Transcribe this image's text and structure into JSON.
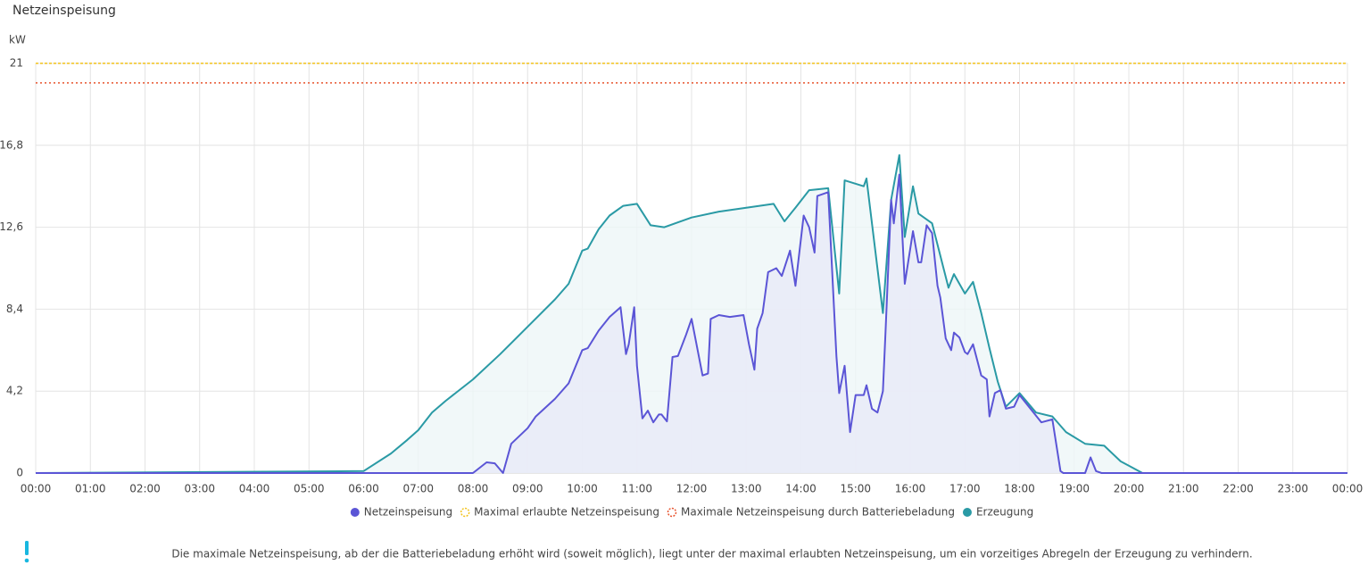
{
  "chart_data": {
    "type": "line",
    "title": "Netzeinspeisung",
    "y_label": "kW",
    "xlim": [
      0,
      24
    ],
    "xticks": [
      {
        "value": 0,
        "label": "00:00"
      },
      {
        "value": 1,
        "label": "01:00"
      },
      {
        "value": 2,
        "label": "02:00"
      },
      {
        "value": 3,
        "label": "03:00"
      },
      {
        "value": 4,
        "label": "04:00"
      },
      {
        "value": 5,
        "label": "05:00"
      },
      {
        "value": 6,
        "label": "06:00"
      },
      {
        "value": 7,
        "label": "07:00"
      },
      {
        "value": 8,
        "label": "08:00"
      },
      {
        "value": 9,
        "label": "09:00"
      },
      {
        "value": 10,
        "label": "10:00"
      },
      {
        "value": 11,
        "label": "11:00"
      },
      {
        "value": 12,
        "label": "12:00"
      },
      {
        "value": 13,
        "label": "13:00"
      },
      {
        "value": 14,
        "label": "14:00"
      },
      {
        "value": 15,
        "label": "15:00"
      },
      {
        "value": 16,
        "label": "16:00"
      },
      {
        "value": 17,
        "label": "17:00"
      },
      {
        "value": 18,
        "label": "18:00"
      },
      {
        "value": 19,
        "label": "19:00"
      },
      {
        "value": 20,
        "label": "20:00"
      },
      {
        "value": 21,
        "label": "21:00"
      },
      {
        "value": 22,
        "label": "22:00"
      },
      {
        "value": 23,
        "label": "23:00"
      },
      {
        "value": 24,
        "label": "00:00"
      }
    ],
    "ylim": [
      0,
      21
    ],
    "yticks": [
      0,
      {
        "value": 4.2,
        "label": "4,2"
      },
      {
        "value": 8.4,
        "label": "8,4"
      },
      {
        "value": 12.6,
        "label": "12,6"
      },
      {
        "value": 16.8,
        "label": "16,8"
      },
      21
    ],
    "grid": true,
    "series": [
      {
        "name": "Netzeinspeisung",
        "color": "#5b55d6",
        "fill": "#e8eaf8",
        "x": [
          0,
          8.0,
          8.25,
          8.4,
          8.55,
          8.7,
          9.0,
          9.15,
          9.5,
          9.75,
          10.0,
          10.1,
          10.3,
          10.5,
          10.7,
          10.8,
          10.85,
          10.95,
          11.0,
          11.1,
          11.2,
          11.3,
          11.4,
          11.45,
          11.55,
          11.65,
          11.75,
          11.9,
          12.0,
          12.2,
          12.3,
          12.35,
          12.5,
          12.7,
          12.95,
          13.05,
          13.15,
          13.2,
          13.3,
          13.4,
          13.55,
          13.65,
          13.8,
          13.9,
          14.05,
          14.15,
          14.25,
          14.3,
          14.5,
          14.65,
          14.7,
          14.8,
          14.9,
          15.0,
          15.15,
          15.2,
          15.3,
          15.4,
          15.5,
          15.55,
          15.65,
          15.7,
          15.8,
          15.9,
          16.05,
          16.15,
          16.2,
          16.3,
          16.4,
          16.5,
          16.55,
          16.65,
          16.75,
          16.8,
          16.9,
          17.0,
          17.05,
          17.15,
          17.3,
          17.4,
          17.45,
          17.55,
          17.65,
          17.75,
          17.9,
          18.0,
          18.4,
          18.6,
          18.75,
          18.8,
          19.2,
          19.3,
          19.4,
          19.5,
          24
        ],
        "values": [
          0,
          0,
          0.55,
          0.5,
          0,
          1.5,
          2.3,
          2.9,
          3.8,
          4.6,
          6.3,
          6.4,
          7.3,
          8.0,
          8.5,
          6.1,
          6.6,
          8.5,
          5.5,
          2.8,
          3.2,
          2.6,
          3.0,
          3.0,
          2.65,
          5.95,
          6.0,
          7.1,
          7.9,
          5.0,
          5.1,
          7.9,
          8.1,
          8.0,
          8.1,
          6.6,
          5.3,
          7.4,
          8.2,
          10.3,
          10.5,
          10.1,
          11.4,
          9.6,
          13.2,
          12.6,
          11.3,
          14.2,
          14.4,
          6.0,
          4.1,
          5.5,
          2.1,
          4.0,
          4.0,
          4.5,
          3.3,
          3.1,
          4.2,
          7.3,
          14.0,
          12.8,
          15.3,
          9.7,
          12.4,
          10.8,
          10.8,
          12.7,
          12.3,
          9.6,
          9.0,
          6.9,
          6.3,
          7.2,
          6.95,
          6.2,
          6.1,
          6.6,
          5.0,
          4.8,
          2.9,
          4.1,
          4.25,
          3.3,
          3.4,
          4.0,
          2.6,
          2.75,
          0.1,
          0,
          0,
          0.8,
          0.1,
          0,
          0
        ]
      },
      {
        "name": "Maximal erlaubte Netzeinspeisung",
        "color": "#f2c21b",
        "value": 21
      },
      {
        "name": "Maximale Netzeinspeisung durch Batteriebeladung",
        "color": "#e8542f",
        "value": 20
      },
      {
        "name": "Erzeugung",
        "color": "#2a9aa5",
        "fill": "#eef6f8",
        "x": [
          0,
          6.0,
          6.5,
          6.8,
          7.0,
          7.25,
          7.5,
          8.0,
          8.5,
          9.0,
          9.5,
          9.75,
          10.0,
          10.1,
          10.3,
          10.5,
          10.75,
          11.0,
          11.25,
          11.5,
          12.0,
          12.5,
          13.0,
          13.5,
          13.7,
          13.9,
          14.15,
          14.5,
          14.7,
          14.8,
          15.15,
          15.2,
          15.5,
          15.65,
          15.8,
          15.9,
          16.05,
          16.15,
          16.4,
          16.7,
          16.8,
          17.0,
          17.15,
          17.3,
          17.45,
          17.6,
          17.75,
          18.0,
          18.3,
          18.6,
          18.85,
          19.2,
          19.55,
          19.85,
          20.25,
          24
        ],
        "values": [
          0,
          0.1,
          1.0,
          1.7,
          2.2,
          3.1,
          3.7,
          4.8,
          6.1,
          7.5,
          8.9,
          9.7,
          11.4,
          11.5,
          12.5,
          13.2,
          13.7,
          13.8,
          12.7,
          12.6,
          13.1,
          13.4,
          13.6,
          13.8,
          12.9,
          13.6,
          14.5,
          14.6,
          9.2,
          15.0,
          14.7,
          15.1,
          8.2,
          14.0,
          16.3,
          12.1,
          14.7,
          13.3,
          12.8,
          9.5,
          10.2,
          9.2,
          9.8,
          8.2,
          6.4,
          4.7,
          3.4,
          4.1,
          3.1,
          2.9,
          2.1,
          1.5,
          1.4,
          0.6,
          0,
          0
        ]
      }
    ],
    "note": "Die maximale Netzeinspeisung, ab der die Batteriebeladung erhöht wird (soweit möglich), liegt unter der maximal erlaubten Netzeinspeisung, um ein vorzeitiges Abregeln der Erzeugung zu verhindern."
  }
}
